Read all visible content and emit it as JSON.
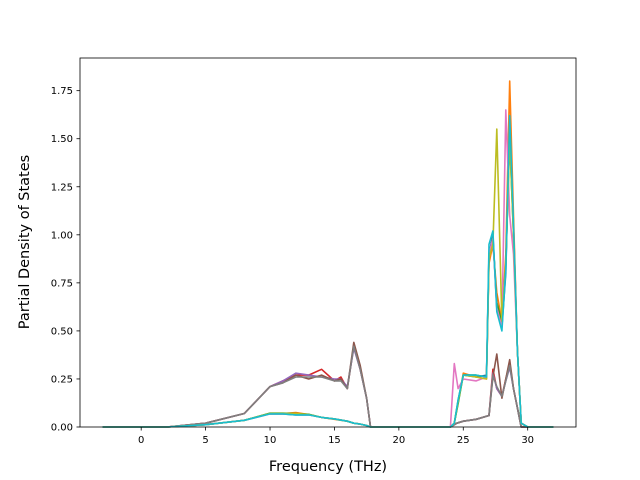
{
  "chart_data": {
    "type": "line",
    "title": "",
    "xlabel": "Frequency (THz)",
    "ylabel": "Partial Density of States",
    "xlim": [
      -4.75,
      33.75
    ],
    "ylim": [
      0,
      1.92
    ],
    "xticks": [
      0,
      5,
      10,
      15,
      20,
      25,
      30
    ],
    "yticks": [
      0.0,
      0.25,
      0.5,
      0.75,
      1.0,
      1.25,
      1.5,
      1.75
    ],
    "xtick_labels": [
      "0",
      "5",
      "10",
      "15",
      "20",
      "25",
      "30"
    ],
    "ytick_labels": [
      "0.00",
      "0.25",
      "0.50",
      "0.75",
      "1.00",
      "1.25",
      "1.50",
      "1.75"
    ],
    "grid": false,
    "legend": "none",
    "series": [
      {
        "color": "#1f77b4",
        "x": [
          -3,
          2,
          5,
          8,
          10,
          11,
          12,
          13,
          14,
          15,
          16,
          16.5,
          17,
          17.5,
          17.8,
          24,
          24.3,
          24.6,
          25,
          26,
          26.8,
          27,
          27.3,
          27.6,
          28,
          28.3,
          28.6,
          28.9,
          29.2,
          29.5,
          30,
          32
        ],
        "y": [
          0,
          0,
          0.012,
          0.035,
          0.068,
          0.068,
          0.063,
          0.063,
          0.05,
          0.042,
          0.03,
          0.02,
          0.015,
          0.008,
          0,
          0,
          0.02,
          0.14,
          0.27,
          0.26,
          0.27,
          0.9,
          1.0,
          0.62,
          0.52,
          0.8,
          1.6,
          1.05,
          0.4,
          0.02,
          0,
          0
        ]
      },
      {
        "color": "#ff7f0e",
        "x": [
          -3,
          2,
          5,
          8,
          10,
          11,
          12,
          13,
          14,
          15,
          16,
          16.5,
          17,
          17.5,
          17.8,
          24,
          24.3,
          24.6,
          25,
          26,
          26.8,
          27,
          27.3,
          27.6,
          28,
          28.3,
          28.6,
          28.9,
          29.2,
          29.5,
          30,
          32
        ],
        "y": [
          0,
          0,
          0.012,
          0.035,
          0.07,
          0.07,
          0.075,
          0.065,
          0.05,
          0.04,
          0.03,
          0.02,
          0.015,
          0.008,
          0,
          0,
          0.02,
          0.13,
          0.28,
          0.26,
          0.25,
          0.85,
          0.95,
          0.7,
          0.55,
          0.9,
          1.8,
          1.1,
          0.4,
          0.02,
          0,
          0
        ]
      },
      {
        "color": "#2ca02c",
        "x": [
          -3,
          2,
          5,
          8,
          10,
          11,
          12,
          13,
          14,
          15,
          16,
          16.5,
          17,
          17.5,
          17.8,
          24,
          24.3,
          24.6,
          25,
          26,
          26.8,
          27,
          27.3,
          27.6,
          28,
          28.3,
          28.6,
          28.9,
          29.2,
          29.5,
          30,
          32
        ],
        "y": [
          0,
          0,
          0.012,
          0.035,
          0.072,
          0.072,
          0.07,
          0.066,
          0.05,
          0.042,
          0.03,
          0.02,
          0.015,
          0.008,
          0,
          0,
          0.02,
          0.12,
          0.27,
          0.27,
          0.26,
          0.88,
          0.98,
          0.65,
          0.54,
          0.85,
          1.5,
          1.0,
          0.4,
          0.02,
          0,
          0
        ]
      },
      {
        "color": "#d62728",
        "x": [
          -3,
          2,
          5,
          8,
          10,
          11,
          12,
          13,
          14,
          15,
          15.5,
          16,
          16.5,
          17,
          17.5,
          17.8,
          24,
          24.5,
          25,
          26,
          27,
          27.3,
          27.6,
          28,
          28.3,
          28.6,
          28.9,
          29.2,
          29.5,
          32
        ],
        "y": [
          0,
          0,
          0.02,
          0.07,
          0.21,
          0.24,
          0.27,
          0.27,
          0.3,
          0.24,
          0.26,
          0.2,
          0.42,
          0.3,
          0.15,
          0,
          0,
          0.02,
          0.03,
          0.04,
          0.06,
          0.3,
          0.2,
          0.16,
          0.25,
          0.33,
          0.2,
          0.1,
          0,
          0
        ]
      },
      {
        "color": "#9467bd",
        "x": [
          -3,
          2,
          5,
          8,
          10,
          11,
          12,
          13,
          14,
          15,
          15.5,
          16,
          16.5,
          17,
          17.5,
          17.8,
          24,
          24.5,
          25,
          26,
          27,
          27.3,
          27.6,
          28,
          28.3,
          28.6,
          28.9,
          29.2,
          29.5,
          32
        ],
        "y": [
          0,
          0,
          0.02,
          0.07,
          0.21,
          0.24,
          0.28,
          0.27,
          0.26,
          0.25,
          0.25,
          0.21,
          0.41,
          0.3,
          0.15,
          0,
          0,
          0.02,
          0.03,
          0.04,
          0.06,
          0.28,
          0.2,
          0.16,
          0.24,
          0.31,
          0.2,
          0.1,
          0,
          0
        ]
      },
      {
        "color": "#8c564b",
        "x": [
          -3,
          2,
          5,
          8,
          10,
          11,
          12,
          13,
          14,
          15,
          15.5,
          16,
          16.5,
          17,
          17.5,
          17.8,
          24,
          24.5,
          25,
          26,
          27,
          27.3,
          27.6,
          28,
          28.3,
          28.6,
          28.9,
          29.2,
          29.5,
          32
        ],
        "y": [
          0,
          0,
          0.02,
          0.07,
          0.21,
          0.23,
          0.27,
          0.25,
          0.27,
          0.24,
          0.25,
          0.2,
          0.44,
          0.32,
          0.15,
          0,
          0,
          0.02,
          0.03,
          0.04,
          0.06,
          0.26,
          0.38,
          0.15,
          0.25,
          0.35,
          0.2,
          0.1,
          0,
          0
        ]
      },
      {
        "color": "#e377c2",
        "x": [
          -3,
          2,
          5,
          8,
          10,
          11,
          12,
          13,
          14,
          15,
          16,
          16.5,
          17,
          17.5,
          17.8,
          24,
          24.3,
          24.6,
          25,
          26,
          26.8,
          27,
          27.3,
          27.6,
          28,
          28.3,
          28.6,
          28.9,
          29.2,
          29.5,
          30,
          32
        ],
        "y": [
          0,
          0,
          0.012,
          0.035,
          0.068,
          0.068,
          0.065,
          0.063,
          0.05,
          0.042,
          0.03,
          0.02,
          0.015,
          0.008,
          0,
          0,
          0.33,
          0.2,
          0.25,
          0.24,
          0.26,
          0.9,
          0.98,
          0.62,
          0.52,
          1.65,
          1.1,
          0.9,
          0.4,
          0.02,
          0,
          0
        ]
      },
      {
        "color": "#7f7f7f",
        "x": [
          -3,
          2,
          5,
          8,
          10,
          11,
          12,
          13,
          14,
          15,
          15.5,
          16,
          16.5,
          17,
          17.5,
          17.8,
          24,
          24.5,
          25,
          26,
          27,
          27.3,
          27.6,
          28,
          28.3,
          28.6,
          28.9,
          29.2,
          29.5,
          32
        ],
        "y": [
          0,
          0,
          0.02,
          0.07,
          0.21,
          0.23,
          0.26,
          0.26,
          0.26,
          0.24,
          0.24,
          0.2,
          0.42,
          0.3,
          0.15,
          0,
          0,
          0.02,
          0.03,
          0.04,
          0.06,
          0.27,
          0.21,
          0.16,
          0.24,
          0.32,
          0.2,
          0.1,
          0,
          0
        ]
      },
      {
        "color": "#bcbd22",
        "x": [
          -3,
          2,
          5,
          8,
          10,
          11,
          12,
          13,
          14,
          15,
          16,
          16.5,
          17,
          17.5,
          17.8,
          24,
          24.3,
          24.6,
          25,
          26,
          26.8,
          27,
          27.3,
          27.6,
          28,
          28.3,
          28.6,
          28.9,
          29.2,
          29.5,
          30,
          32
        ],
        "y": [
          0,
          0,
          0.012,
          0.035,
          0.07,
          0.07,
          0.07,
          0.064,
          0.05,
          0.042,
          0.03,
          0.02,
          0.015,
          0.008,
          0,
          0,
          0.02,
          0.13,
          0.27,
          0.26,
          0.25,
          0.88,
          0.95,
          1.55,
          0.55,
          0.85,
          1.5,
          1.0,
          0.4,
          0.02,
          0,
          0
        ]
      },
      {
        "color": "#17becf",
        "x": [
          -3,
          2,
          5,
          8,
          10,
          11,
          12,
          13,
          14,
          15,
          16,
          16.5,
          17,
          17.5,
          17.8,
          24,
          24.3,
          24.6,
          25,
          26,
          26.8,
          27,
          27.3,
          27.6,
          28,
          28.3,
          28.6,
          28.9,
          29.2,
          29.5,
          30,
          32
        ],
        "y": [
          0,
          0,
          0.012,
          0.035,
          0.068,
          0.068,
          0.063,
          0.063,
          0.05,
          0.042,
          0.03,
          0.02,
          0.015,
          0.008,
          0,
          0,
          0.02,
          0.14,
          0.27,
          0.27,
          0.26,
          0.95,
          1.02,
          0.6,
          0.5,
          0.82,
          1.62,
          1.05,
          0.4,
          0.02,
          0,
          0
        ]
      }
    ]
  }
}
